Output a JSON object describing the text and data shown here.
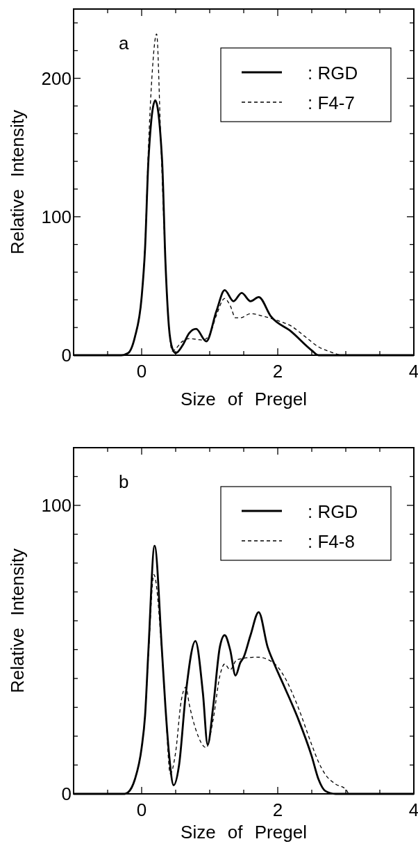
{
  "chart_data": [
    {
      "type": "line",
      "xlabel": "Size of Pregel",
      "ylabel": "Relative Intensity",
      "annotations": [
        "a"
      ],
      "xlim": [
        -1,
        4
      ],
      "ylim": [
        0,
        250
      ],
      "xticks": [
        {
          "value": -0.5,
          "label": null
        },
        0,
        {
          "value": 0.5,
          "label": null
        },
        {
          "value": 1,
          "label": null
        },
        {
          "value": 1.5,
          "label": null
        },
        2,
        {
          "value": 2.5,
          "label": null
        },
        {
          "value": 3,
          "label": null
        },
        {
          "value": 3.5,
          "label": null
        },
        4
      ],
      "yticks": [
        0,
        {
          "value": 20,
          "label": null
        },
        {
          "value": 40,
          "label": null
        },
        {
          "value": 60,
          "label": null
        },
        {
          "value": 80,
          "label": null
        },
        100,
        {
          "value": 120,
          "label": null
        },
        {
          "value": 140,
          "label": null
        },
        {
          "value": 160,
          "label": null
        },
        {
          "value": 180,
          "label": null
        },
        200,
        {
          "value": 220,
          "label": null
        },
        {
          "value": 240,
          "label": null
        }
      ],
      "legend": "top right",
      "grid": false,
      "series": [
        {
          "name": ": RGD",
          "color": "#000000",
          "line_style": "solid",
          "x": [
            -1,
            -0.3,
            -0.2,
            -0.1,
            0,
            0.05,
            0.1,
            0.2,
            0.3,
            0.35,
            0.4,
            0.45,
            0.5,
            0.6,
            0.7,
            0.8,
            0.95,
            1.1,
            1.22,
            1.35,
            1.47,
            1.6,
            1.72,
            1.9,
            2.2,
            2.5,
            2.6,
            4
          ],
          "values": [
            0,
            0,
            1.5,
            13,
            42,
            77,
            141,
            184,
            141,
            67,
            21,
            5,
            1.5,
            7,
            16,
            19,
            10,
            32,
            47,
            39,
            45,
            39,
            42,
            28,
            17,
            3.5,
            0,
            0
          ]
        },
        {
          "name": ": F4-7",
          "color": "#000000",
          "line_style": "dashed",
          "x": [
            -1,
            -0.3,
            -0.2,
            -0.1,
            0,
            0.05,
            0.1,
            0.15,
            0.22,
            0.28,
            0.35,
            0.4,
            0.45,
            0.6,
            0.7,
            0.9,
            1,
            1.1,
            1.22,
            1.3,
            1.38,
            1.45,
            1.6,
            1.8,
            2,
            2.2,
            2.4,
            2.6,
            2.8,
            2.95,
            4
          ],
          "values": [
            0,
            0,
            1.5,
            13,
            42,
            80,
            150,
            200,
            232,
            157,
            67,
            21,
            3,
            10,
            12,
            11,
            15,
            29,
            41,
            36,
            27,
            27,
            30,
            28,
            25,
            21,
            13.5,
            6,
            2,
            0,
            0
          ]
        }
      ]
    },
    {
      "type": "line",
      "xlabel": "Size of Pregel",
      "ylabel": "Relative Intensity",
      "annotations": [
        "b"
      ],
      "xlim": [
        -1,
        4
      ],
      "ylim": [
        0,
        120
      ],
      "xticks": [
        {
          "value": -0.5,
          "label": null
        },
        0,
        {
          "value": 0.5,
          "label": null
        },
        {
          "value": 1,
          "label": null
        },
        {
          "value": 1.5,
          "label": null
        },
        2,
        {
          "value": 2.5,
          "label": null
        },
        {
          "value": 3,
          "label": null
        },
        {
          "value": 3.5,
          "label": null
        },
        4
      ],
      "yticks": [
        0,
        {
          "value": 10,
          "label": null
        },
        {
          "value": 20,
          "label": null
        },
        {
          "value": 30,
          "label": null
        },
        {
          "value": 40,
          "label": null
        },
        {
          "value": 50,
          "label": null
        },
        {
          "value": 60,
          "label": null
        },
        {
          "value": 70,
          "label": null
        },
        {
          "value": 80,
          "label": null
        },
        {
          "value": 90,
          "label": null
        },
        100,
        {
          "value": 110,
          "label": null
        }
      ],
      "legend": "top right",
      "grid": false,
      "series": [
        {
          "name": ": RGD",
          "color": "#000000",
          "line_style": "solid",
          "x": [
            -1,
            -0.25,
            -0.2,
            -0.1,
            0,
            0.05,
            0.1,
            0.19,
            0.3,
            0.35,
            0.4,
            0.47,
            0.55,
            0.65,
            0.79,
            0.9,
            0.97,
            1.05,
            1.15,
            1.22,
            1.3,
            1.38,
            1.45,
            1.5,
            1.6,
            1.72,
            1.85,
            1.95,
            2.1,
            2.3,
            2.5,
            2.6,
            2.7,
            2.85,
            4
          ],
          "values": [
            0,
            0,
            0.5,
            5,
            16,
            27,
            50,
            86,
            49,
            30,
            14.5,
            3,
            10,
            35,
            53,
            35,
            17,
            30,
            51,
            55,
            50,
            41,
            45.5,
            47.4,
            55,
            63,
            51,
            45,
            37,
            26,
            13,
            5,
            1,
            0,
            0
          ]
        },
        {
          "name": ": F4-8",
          "color": "#000000",
          "line_style": "dashed",
          "x": [
            -1,
            -0.25,
            -0.2,
            -0.1,
            0,
            0.05,
            0.1,
            0.18,
            0.3,
            0.35,
            0.42,
            0.5,
            0.58,
            0.65,
            0.7,
            0.8,
            0.95,
            1.05,
            1.15,
            1.22,
            1.3,
            1.4,
            1.7,
            1.9,
            2,
            2.1,
            2.3,
            2.5,
            2.6,
            2.7,
            2.85,
            3,
            3.05,
            4
          ],
          "values": [
            0,
            0,
            0.5,
            5,
            16,
            27,
            48,
            76,
            48,
            30,
            7,
            14.5,
            32,
            37,
            31,
            22,
            16,
            25.6,
            41,
            45,
            43,
            46.5,
            47.4,
            46,
            44,
            40.5,
            30,
            17,
            11,
            6.7,
            3.4,
            1.6,
            0,
            0
          ]
        }
      ]
    }
  ]
}
